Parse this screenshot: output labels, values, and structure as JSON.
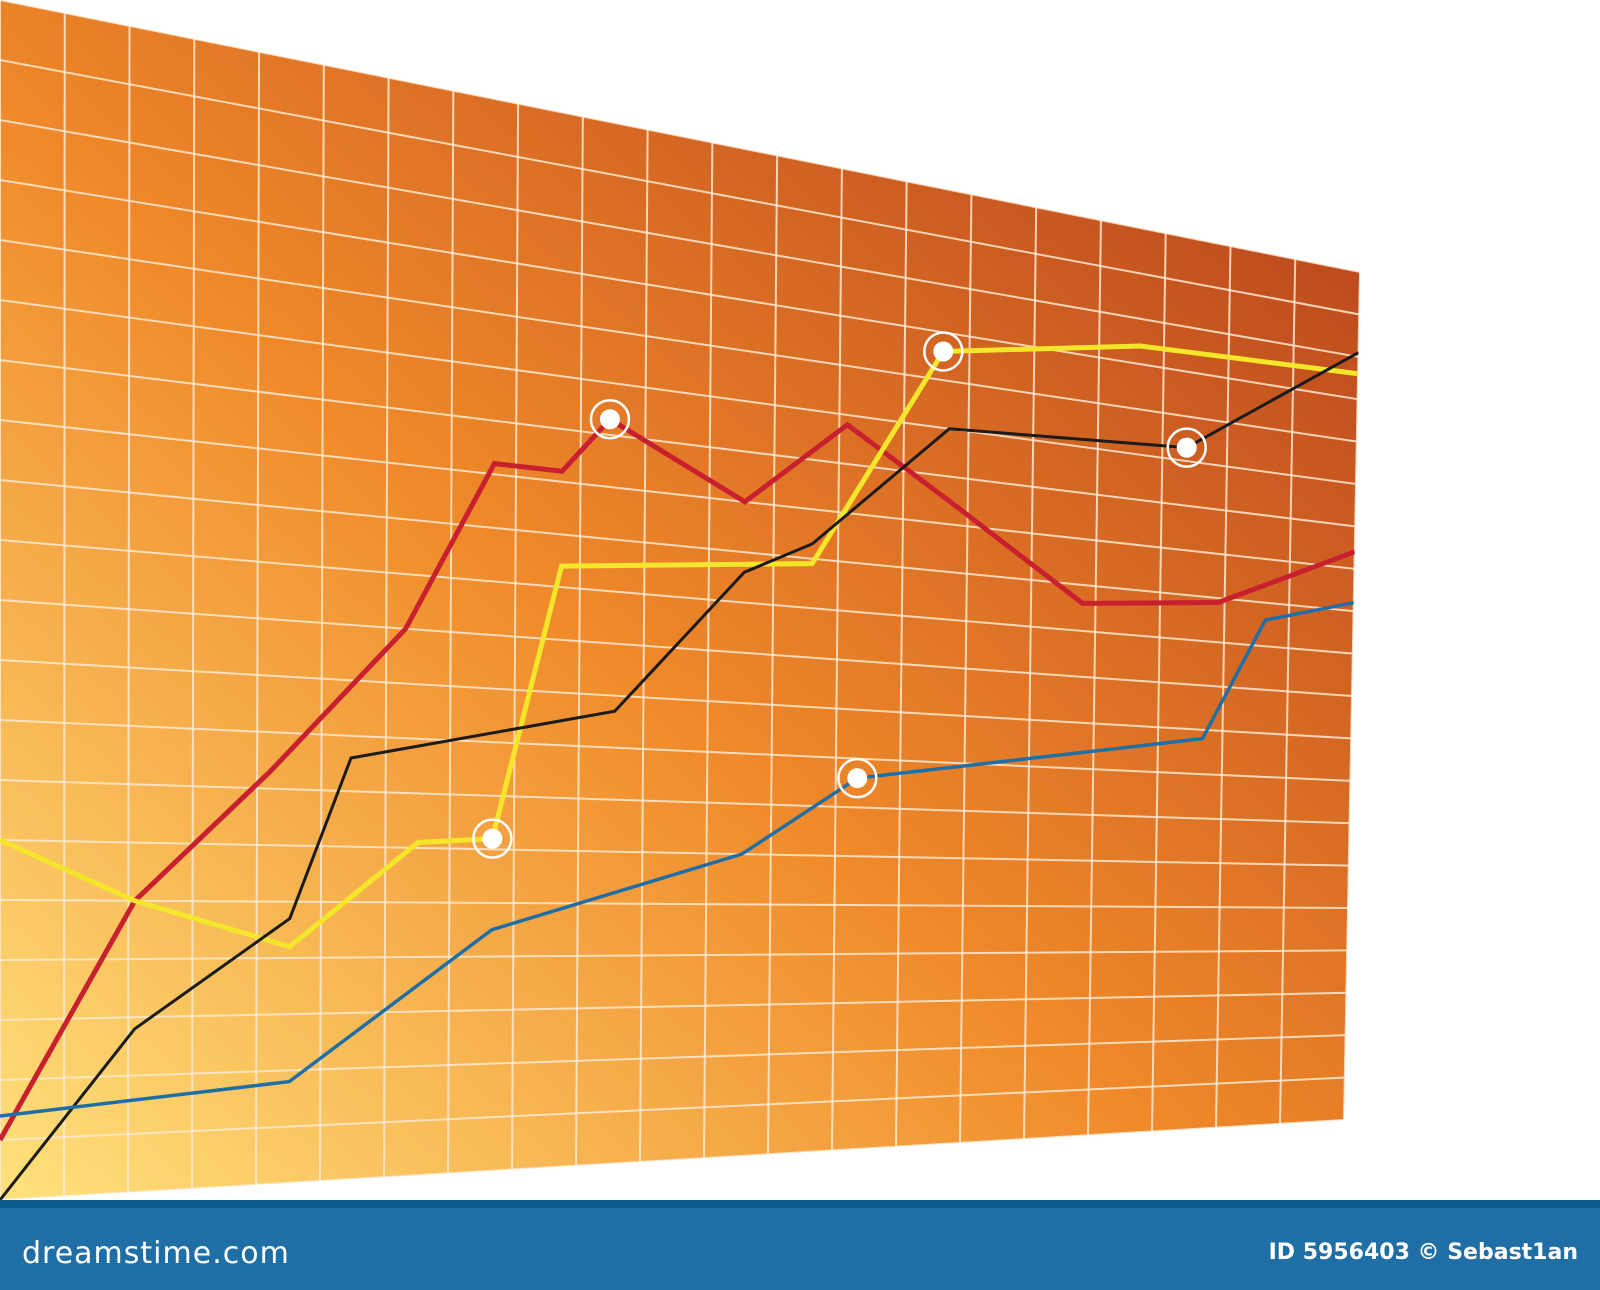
{
  "chart_data": {
    "type": "line",
    "grid": true,
    "x": [
      0,
      1,
      2,
      3,
      4,
      5,
      6,
      7,
      8,
      9,
      10,
      11,
      12,
      13,
      14,
      15,
      16,
      17,
      18,
      19,
      20
    ],
    "ylim": [
      0,
      20
    ],
    "series": [
      {
        "color": "#c8202e",
        "points": [
          [
            0,
            1
          ],
          [
            2,
            5
          ],
          [
            4,
            7.3
          ],
          [
            6,
            10
          ],
          [
            7.3,
            13.2
          ],
          [
            8.3,
            13.2
          ],
          [
            9,
            14.3
          ],
          [
            11,
            13
          ],
          [
            12.5,
            14.8
          ],
          [
            14,
            13.5
          ],
          [
            16,
            11.6
          ],
          [
            18,
            11.9
          ],
          [
            20,
            13.4
          ]
        ],
        "markers": [
          [
            9,
            14.3
          ]
        ]
      },
      {
        "color": "#f4e62a",
        "points": [
          [
            0,
            6
          ],
          [
            2,
            5
          ],
          [
            4.3,
            4.2
          ],
          [
            6.2,
            6.1
          ],
          [
            7.3,
            6.2
          ],
          [
            8.3,
            11.4
          ],
          [
            12,
            11.9
          ],
          [
            13.9,
            16.6
          ],
          [
            16.8,
            17.4
          ],
          [
            20,
            17.6
          ]
        ],
        "markers": [
          [
            7.3,
            6.2
          ],
          [
            13.9,
            16.6
          ]
        ]
      },
      {
        "color": "#1b1b1b",
        "points": [
          [
            0,
            0
          ],
          [
            2,
            2.8
          ],
          [
            4.3,
            4.7
          ],
          [
            5.2,
            7.6
          ],
          [
            9.1,
            8.7
          ],
          [
            11,
            11.6
          ],
          [
            12,
            12.3
          ],
          [
            14,
            15
          ],
          [
            17.5,
            15.3
          ],
          [
            20,
            18.1
          ]
        ],
        "markers": [
          [
            17.5,
            15.3
          ]
        ]
      },
      {
        "color": "#1f6fa6",
        "points": [
          [
            0,
            1.4
          ],
          [
            4.3,
            1.8
          ],
          [
            7.3,
            4.5
          ],
          [
            11,
            6
          ],
          [
            12.7,
            7.6
          ],
          [
            17.8,
            8.8
          ],
          [
            18.7,
            11.6
          ],
          [
            20,
            12.2
          ]
        ],
        "markers": [
          [
            12.7,
            7.6
          ]
        ]
      }
    ]
  },
  "footer": {
    "site": "dreamstime.com",
    "credit": "ID 5956403 © Sebast1an"
  },
  "colors": {
    "footer_bg": "#1f6fa6",
    "grid_line": "#ffe9d0",
    "gradient_light": "#ffe27c",
    "gradient_mid": "#f08a2a",
    "gradient_dark": "#b13a1a"
  }
}
